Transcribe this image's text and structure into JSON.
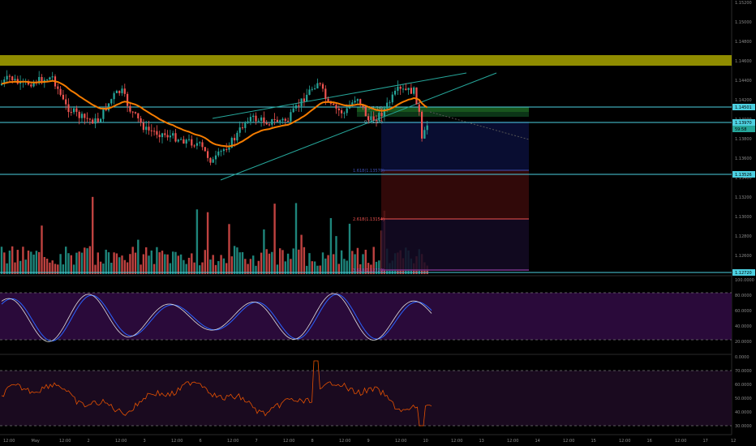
{
  "colors": {
    "background": "#000000",
    "bull_candle": "#26a69a",
    "bear_candle": "#ef5350",
    "resistance_band": "#8f8c00",
    "horizontal_lines": "#4dd0e1",
    "ema": "#f57c00",
    "channel": "#26a69a",
    "stoch_k": "#e0e0e0",
    "stoch_d": "#2962ff",
    "stoch_band": "#2a0a3a",
    "rsi_line": "#e65100",
    "rsi_band": "#1a0a1f",
    "fib_profit": "#0b0f3a",
    "fib_loss": "#3a0b0b",
    "fib_levels": [
      "#3f51b5",
      "#ef5350",
      "#ab47bc"
    ]
  },
  "price_axis": {
    "ticks": [
      "1.15200",
      "1.15000",
      "1.14800",
      "1.14600",
      "1.14400",
      "1.14200",
      "1.14000",
      "1.13800",
      "1.13600",
      "1.13400",
      "1.13200",
      "1.13000",
      "1.12800",
      "1.12600"
    ],
    "tags": [
      {
        "label": "1.14501",
        "color": "#4dd0e1"
      },
      {
        "label": "1.13970",
        "color": "#4dd0e1"
      },
      {
        "label": "59:58",
        "color": "#26a69a"
      },
      {
        "label": "1.13526",
        "color": "#4dd0e1"
      },
      {
        "label": "1.12720",
        "color": "#4dd0e1"
      }
    ]
  },
  "stoch_axis": {
    "ticks": [
      "100.0000",
      "80.0000",
      "60.0000",
      "40.0000",
      "20.0000",
      "0.0000"
    ]
  },
  "rsi_axis": {
    "ticks": [
      "70.0000",
      "60.0000",
      "50.0000",
      "40.0000",
      "30.0000"
    ]
  },
  "time_axis": {
    "labels": [
      "12:00",
      "May",
      "12:00",
      "2",
      "12:00",
      "3",
      "12:00",
      "6",
      "12:00",
      "7",
      "12:00",
      "8",
      "12:00",
      "9",
      "12:00",
      "10",
      "12:00",
      "13",
      "12:00",
      "14",
      "12:00",
      "15",
      "12:00",
      "16",
      "12:00",
      "17",
      "12"
    ]
  },
  "fib_labels": {
    "level_1618": "1.618(1.13570)",
    "level_2618": "2.618(1.13154)",
    "level_3618": "3.618(1.12720)",
    "level_0": "0.5(1.14)",
    "level_05": "0.5(1.14)"
  },
  "chart_data": [
    {
      "type": "line",
      "panel": "price",
      "series": [
        {
          "name": "",
          "values": []
        }
      ],
      "ylim": [
        1.126,
        1.152
      ],
      "grid": false,
      "annotations": [
        "resistance band 1.1465-1.1475",
        "horizontal line 1.14501",
        "horizontal line 1.13970",
        "horizontal line 1.13526",
        "rising channel",
        "fib extension box"
      ]
    },
    {
      "type": "bar",
      "panel": "volume",
      "values": []
    },
    {
      "type": "line",
      "panel": "stochastic",
      "ylim": [
        0,
        100
      ],
      "bands": [
        20,
        80
      ]
    },
    {
      "type": "line",
      "panel": "rsi",
      "ylim": [
        25,
        75
      ],
      "bands": [
        30,
        70
      ]
    }
  ]
}
